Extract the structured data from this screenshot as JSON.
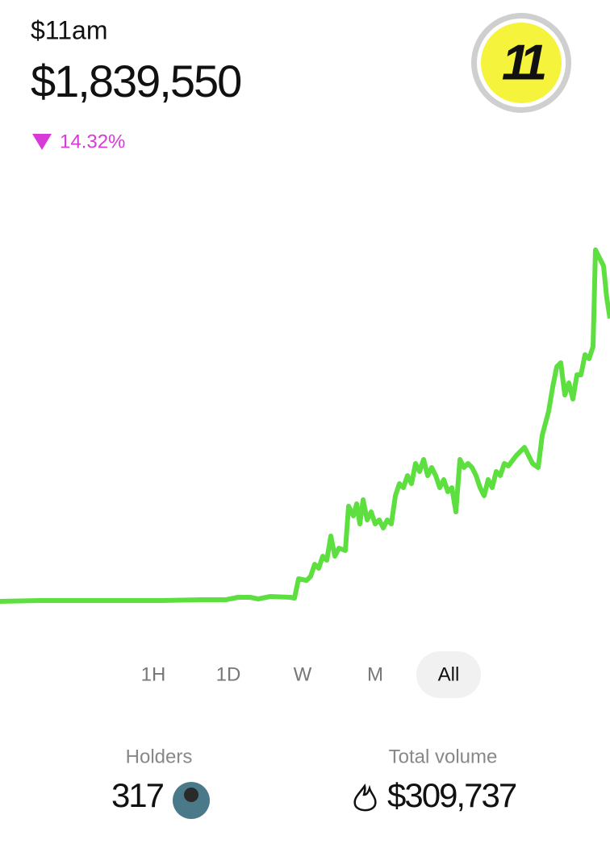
{
  "header": {
    "ticker": "$11am",
    "price": "$1,839,550",
    "change": "14.32%",
    "logo": "11"
  },
  "chart_data": {
    "type": "line",
    "color": "#5ddf3f",
    "x": [
      0,
      50,
      100,
      150,
      200,
      250,
      280,
      295,
      310,
      320,
      335,
      360,
      365,
      370,
      380,
      385,
      390,
      395,
      400,
      405,
      410,
      415,
      420,
      428,
      432,
      438,
      442,
      446,
      450,
      455,
      460,
      465,
      470,
      475,
      480,
      485,
      490,
      495,
      500,
      505,
      510,
      515,
      520,
      525,
      530,
      535,
      540,
      545,
      550,
      555,
      560,
      565,
      570,
      575,
      580,
      585,
      590,
      595,
      600,
      605,
      610,
      615,
      620,
      625,
      630,
      640,
      650,
      660,
      667,
      672,
      680,
      685,
      690,
      695,
      700,
      705,
      710,
      715,
      720,
      725,
      730,
      735,
      738,
      743,
      748,
      752,
      756
    ],
    "values": [
      14,
      15,
      15,
      15,
      15,
      16,
      16,
      19,
      19,
      17,
      20,
      19,
      18,
      42,
      40,
      45,
      60,
      55,
      70,
      65,
      95,
      70,
      80,
      77,
      132,
      120,
      135,
      110,
      140,
      115,
      125,
      110,
      115,
      105,
      115,
      110,
      145,
      160,
      155,
      170,
      160,
      185,
      175,
      190,
      170,
      180,
      170,
      155,
      165,
      150,
      155,
      125,
      190,
      180,
      185,
      180,
      170,
      155,
      145,
      165,
      155,
      175,
      170,
      185,
      182,
      195,
      205,
      185,
      180,
      220,
      250,
      280,
      305,
      310,
      270,
      285,
      265,
      295,
      295,
      320,
      315,
      330,
      450,
      440,
      430,
      390,
      365
    ],
    "xlim": [
      0,
      756
    ],
    "ylim": [
      0,
      460
    ]
  },
  "timeframes": [
    "1H",
    "1D",
    "W",
    "M",
    "All"
  ],
  "stats": {
    "holders_label": "Holders",
    "holders": "317",
    "volume_label": "Total volume",
    "volume": "$309,737"
  }
}
